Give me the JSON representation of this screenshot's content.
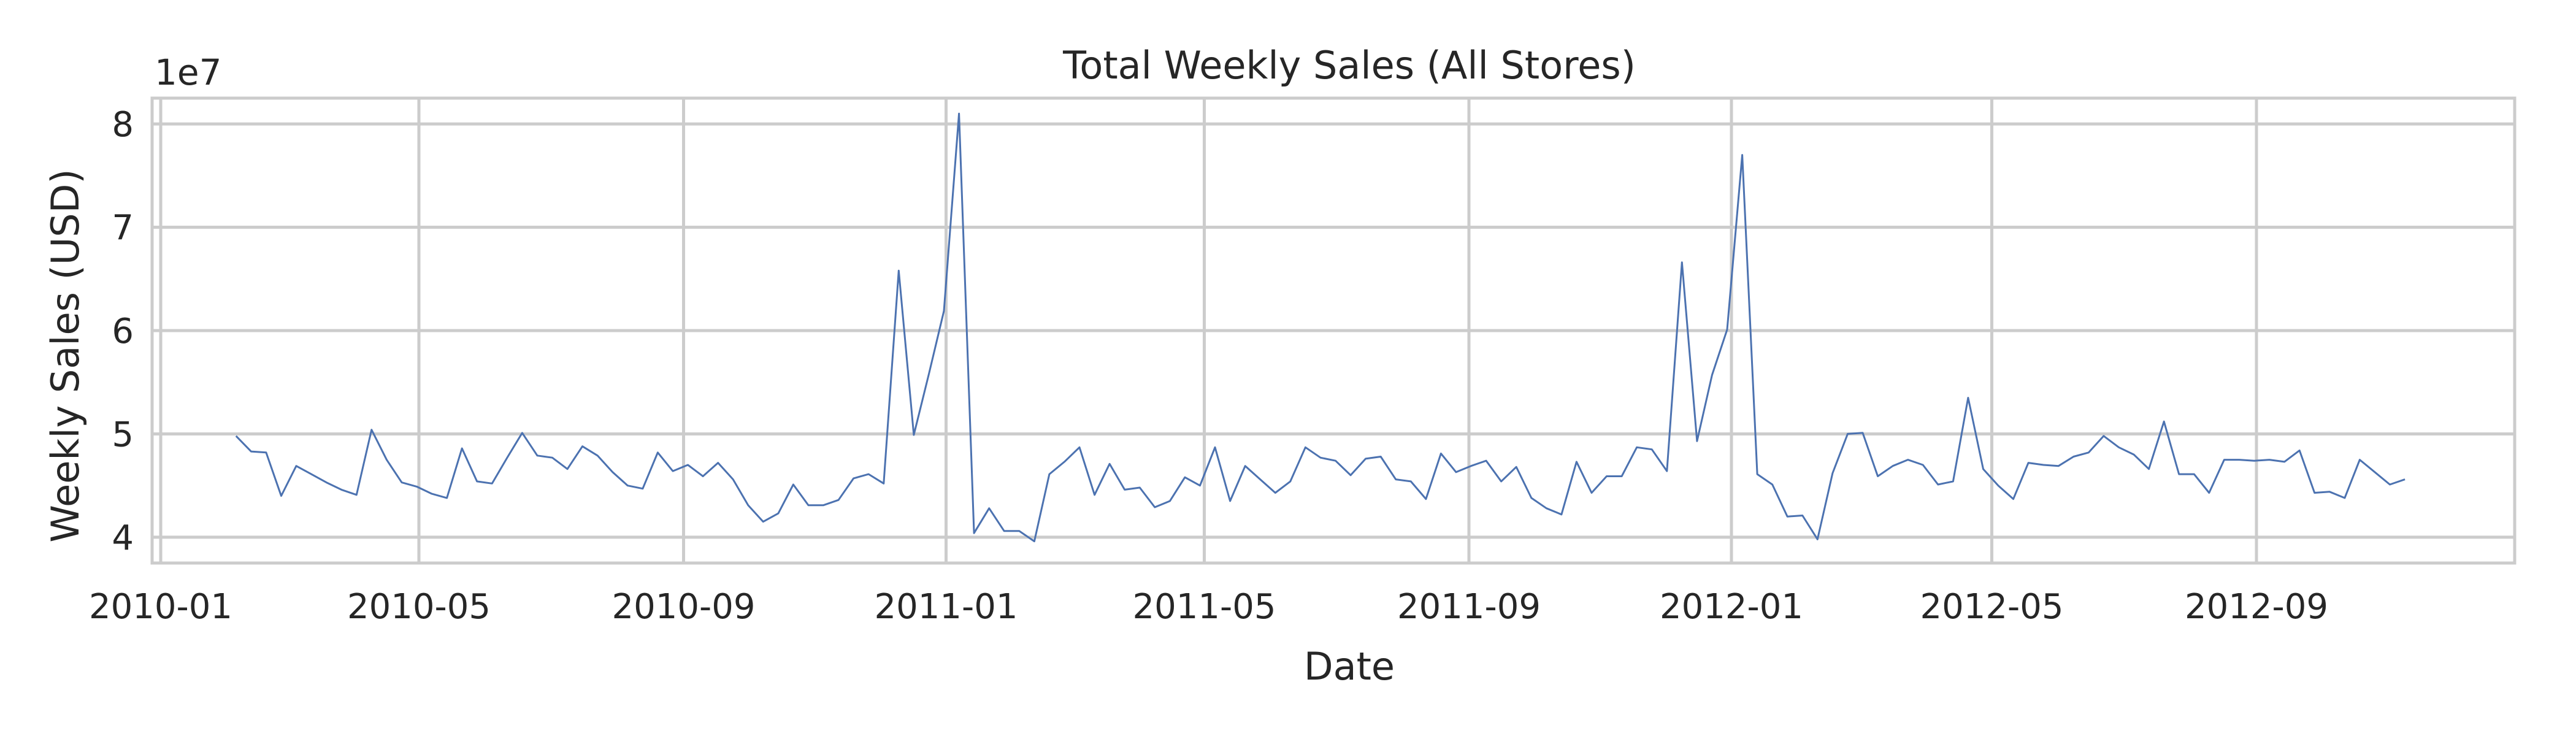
{
  "chart_data": {
    "type": "line",
    "title": "Total Weekly Sales (All Stores)",
    "xlabel": "Date",
    "ylabel": "Weekly Sales (USD)",
    "y_offset_text": "1e7",
    "grid": true,
    "legend": "none",
    "x_range": [
      "2009-12-28",
      "2012-12-30"
    ],
    "ylim": [
      3.75,
      8.25
    ],
    "y_ticks": [
      {
        "value": 4,
        "label": "4"
      },
      {
        "value": 5,
        "label": "5"
      },
      {
        "value": 6,
        "label": "6"
      },
      {
        "value": 7,
        "label": "7"
      },
      {
        "value": 8,
        "label": "8"
      }
    ],
    "x_ticks": [
      {
        "date": "2010-01-01",
        "label": "2010-01"
      },
      {
        "date": "2010-05-01",
        "label": "2010-05"
      },
      {
        "date": "2010-09-01",
        "label": "2010-09"
      },
      {
        "date": "2011-01-01",
        "label": "2011-01"
      },
      {
        "date": "2011-05-01",
        "label": "2011-05"
      },
      {
        "date": "2011-09-01",
        "label": "2011-09"
      },
      {
        "date": "2012-01-01",
        "label": "2012-01"
      },
      {
        "date": "2012-05-01",
        "label": "2012-05"
      },
      {
        "date": "2012-09-01",
        "label": "2012-09"
      }
    ],
    "series": [
      {
        "color": "#4c72b0",
        "start_date": "2010-02-05",
        "interval_days": 7,
        "values": [
          4.98,
          4.83,
          4.82,
          4.4,
          4.69,
          4.61,
          4.53,
          4.46,
          4.41,
          5.04,
          4.75,
          4.53,
          4.49,
          4.42,
          4.38,
          4.86,
          4.54,
          4.52,
          4.77,
          5.01,
          4.79,
          4.77,
          4.66,
          4.88,
          4.79,
          4.63,
          4.5,
          4.47,
          4.82,
          4.64,
          4.7,
          4.59,
          4.72,
          4.56,
          4.31,
          4.15,
          4.23,
          4.51,
          4.31,
          4.31,
          4.36,
          4.57,
          4.61,
          4.52,
          6.58,
          4.99,
          5.58,
          6.19,
          8.1,
          4.04,
          4.28,
          4.06,
          4.06,
          3.96,
          4.61,
          4.73,
          4.87,
          4.41,
          4.71,
          4.46,
          4.48,
          4.29,
          4.35,
          4.58,
          4.5,
          4.87,
          4.35,
          4.69,
          4.56,
          4.43,
          4.54,
          4.87,
          4.77,
          4.74,
          4.6,
          4.76,
          4.78,
          4.56,
          4.54,
          4.37,
          4.81,
          4.63,
          4.69,
          4.74,
          4.54,
          4.68,
          4.38,
          4.28,
          4.22,
          4.73,
          4.43,
          4.59,
          4.59,
          4.87,
          4.85,
          4.64,
          6.66,
          4.93,
          5.57,
          6.01,
          7.7,
          4.61,
          4.51,
          4.2,
          4.21,
          3.98,
          4.62,
          5.0,
          5.01,
          4.59,
          4.69,
          4.75,
          4.7,
          4.51,
          4.54,
          5.35,
          4.66,
          4.5,
          4.37,
          4.72,
          4.7,
          4.69,
          4.78,
          4.82,
          4.98,
          4.87,
          4.8,
          4.66,
          5.12,
          4.61,
          4.61,
          4.43,
          4.75,
          4.75,
          4.74,
          4.75,
          4.73,
          4.84,
          4.43,
          4.44,
          4.38,
          4.75,
          4.63,
          4.51,
          4.56
        ]
      }
    ]
  }
}
